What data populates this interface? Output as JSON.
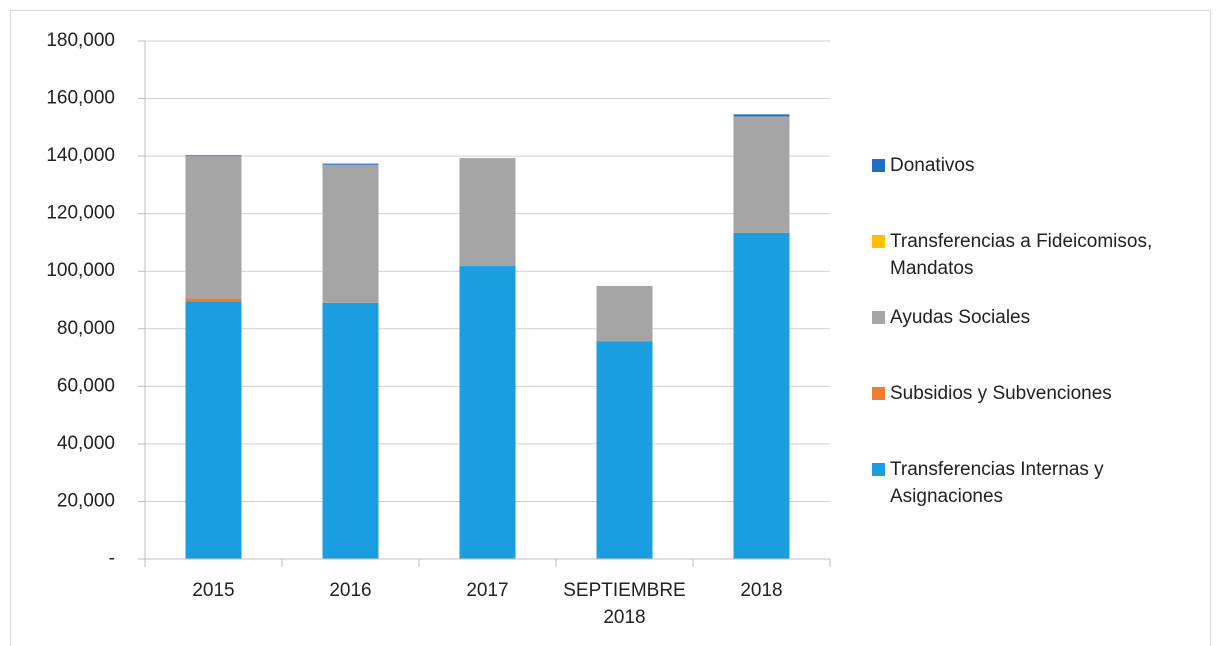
{
  "chart_data": {
    "type": "stacked_bar",
    "categories": [
      "2015",
      "2016",
      "2017",
      "SEPTIEMBRE 2018",
      "2018"
    ],
    "series": [
      {
        "name": "Transferencias Internas y Asignaciones",
        "color": "#1b9ee0",
        "values": [
          89500,
          89000,
          101800,
          75700,
          113300
        ]
      },
      {
        "name": "Subsidios y Subvenciones",
        "color": "#ed7d31",
        "values": [
          1000,
          0,
          0,
          0,
          0
        ]
      },
      {
        "name": "Ayudas Sociales",
        "color": "#a5a5a5",
        "values": [
          49500,
          48000,
          37500,
          19200,
          40500
        ]
      },
      {
        "name": "Transferencias a Fideicomisos, Mandatos",
        "color": "#ffc000",
        "values": [
          0,
          0,
          0,
          0,
          0
        ]
      },
      {
        "name": "Donativos",
        "color": "#1f6fc4",
        "values": [
          300,
          400,
          0,
          0,
          700
        ]
      }
    ],
    "ylim": [
      0,
      180000
    ],
    "yticks": [
      {
        "value": 0,
        "label": "-"
      },
      {
        "value": 20000,
        "label": "20,000"
      },
      {
        "value": 40000,
        "label": "40,000"
      },
      {
        "value": 60000,
        "label": "60,000"
      },
      {
        "value": 80000,
        "label": "80,000"
      },
      {
        "value": 100000,
        "label": "100,000"
      },
      {
        "value": 120000,
        "label": "120,000"
      },
      {
        "value": 140000,
        "label": "140,000"
      },
      {
        "value": 160000,
        "label": "160,000"
      },
      {
        "value": 180000,
        "label": "180,000"
      }
    ],
    "grid": true,
    "legend": "right"
  }
}
